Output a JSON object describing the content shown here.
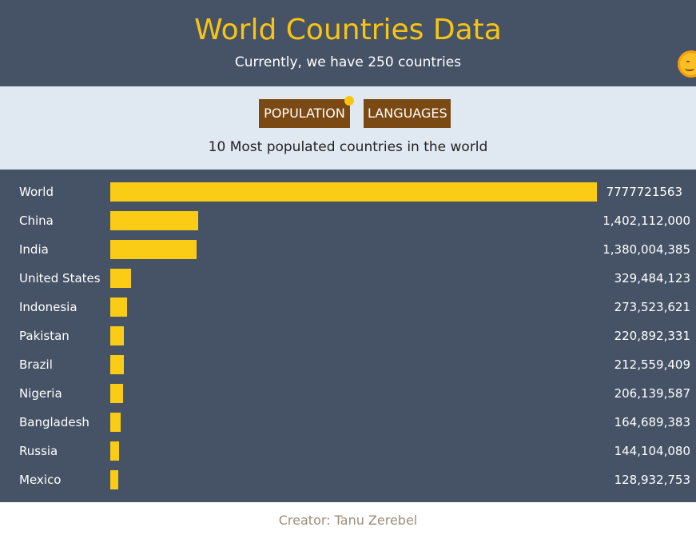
{
  "header": {
    "title": "World Countries Data",
    "subtitle": "Currently, we have 250 countries"
  },
  "controls": {
    "population_label": "POPULATION",
    "languages_label": "LANGUAGES",
    "caption": "10 Most populated countries in the world"
  },
  "colors": {
    "header_bg": "#465366",
    "title": "#F9C512",
    "button_bg": "#7B4A14",
    "bar": "#FACC15",
    "controls_bg": "#E0E8F1"
  },
  "chart_data": {
    "type": "bar",
    "categories": [
      "World",
      "China",
      "India",
      "United States",
      "Indonesia",
      "Pakistan",
      "Brazil",
      "Nigeria",
      "Bangladesh",
      "Russia",
      "Mexico"
    ],
    "values": [
      7777721563,
      1402112000,
      1380004385,
      329484123,
      273523621,
      220892331,
      212559409,
      206139587,
      164689383,
      144104080,
      128932753
    ],
    "value_labels": [
      "7777721563",
      "1,402,112,000",
      "1,380,004,385",
      "329,484,123",
      "273,523,621",
      "220,892,331",
      "212,559,409",
      "206,139,587",
      "164,689,383",
      "144,104,080",
      "128,932,753"
    ]
  },
  "footer": {
    "text": "Creator: Tanu Zerebel"
  }
}
